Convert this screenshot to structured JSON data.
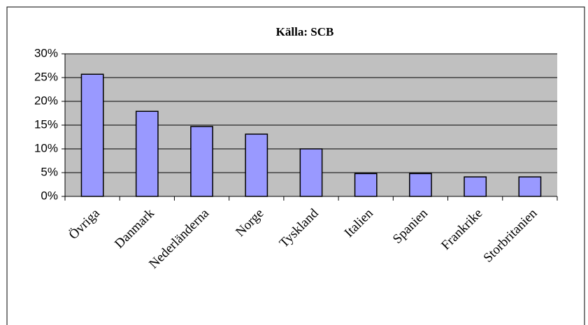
{
  "chart_data": {
    "type": "bar",
    "title": "Källa: SCB",
    "categories": [
      "Övriga",
      "Danmark",
      "Nederländerna",
      "Norge",
      "Tyskland",
      "Italien",
      "Spanien",
      "Frankrike",
      "Storbritanien"
    ],
    "values": [
      25.7,
      17.9,
      14.7,
      13.1,
      10.0,
      4.8,
      4.8,
      4.1,
      4.1
    ],
    "color": "#9999ff",
    "ylim": [
      0,
      30
    ],
    "yticks": [
      {
        "value": 0,
        "label": "0%"
      },
      {
        "value": 5,
        "label": "5%"
      },
      {
        "value": 10,
        "label": "10%"
      },
      {
        "value": 15,
        "label": "15%"
      },
      {
        "value": 20,
        "label": "20%"
      },
      {
        "value": 25,
        "label": "25%"
      },
      {
        "value": 30,
        "label": "30%"
      }
    ],
    "grid": true
  }
}
